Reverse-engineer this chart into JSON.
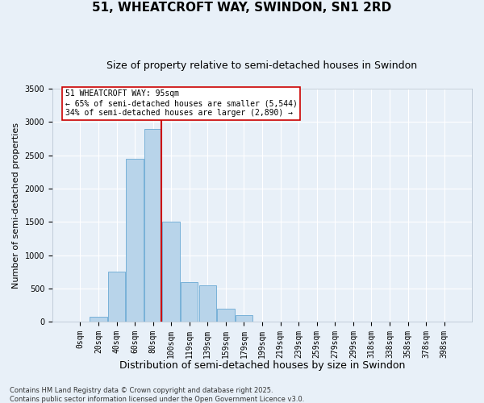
{
  "title": "51, WHEATCROFT WAY, SWINDON, SN1 2RD",
  "subtitle": "Size of property relative to semi-detached houses in Swindon",
  "xlabel": "Distribution of semi-detached houses by size in Swindon",
  "ylabel": "Number of semi-detached properties",
  "bar_labels": [
    "0sqm",
    "20sqm",
    "40sqm",
    "60sqm",
    "80sqm",
    "100sqm",
    "119sqm",
    "139sqm",
    "159sqm",
    "179sqm",
    "199sqm",
    "219sqm",
    "239sqm",
    "259sqm",
    "279sqm",
    "299sqm",
    "318sqm",
    "338sqm",
    "358sqm",
    "378sqm",
    "398sqm"
  ],
  "bar_values": [
    0,
    70,
    750,
    2450,
    2900,
    1500,
    600,
    550,
    200,
    100,
    0,
    0,
    0,
    0,
    0,
    0,
    0,
    0,
    0,
    0,
    0
  ],
  "bar_color": "#b8d4ea",
  "bar_edge_color": "#6aaad4",
  "background_color": "#e8f0f8",
  "grid_color": "#ffffff",
  "vline_color": "#cc0000",
  "vline_x": 4.45,
  "annotation_text": "51 WHEATCROFT WAY: 95sqm\n← 65% of semi-detached houses are smaller (5,544)\n34% of semi-detached houses are larger (2,890) →",
  "annotation_box_edge_color": "#cc0000",
  "ylim": [
    0,
    3500
  ],
  "yticks": [
    0,
    500,
    1000,
    1500,
    2000,
    2500,
    3000,
    3500
  ],
  "footnote": "Contains HM Land Registry data © Crown copyright and database right 2025.\nContains public sector information licensed under the Open Government Licence v3.0.",
  "title_fontsize": 11,
  "subtitle_fontsize": 9,
  "xlabel_fontsize": 9,
  "ylabel_fontsize": 8,
  "tick_fontsize": 7,
  "annotation_fontsize": 7,
  "footnote_fontsize": 6
}
